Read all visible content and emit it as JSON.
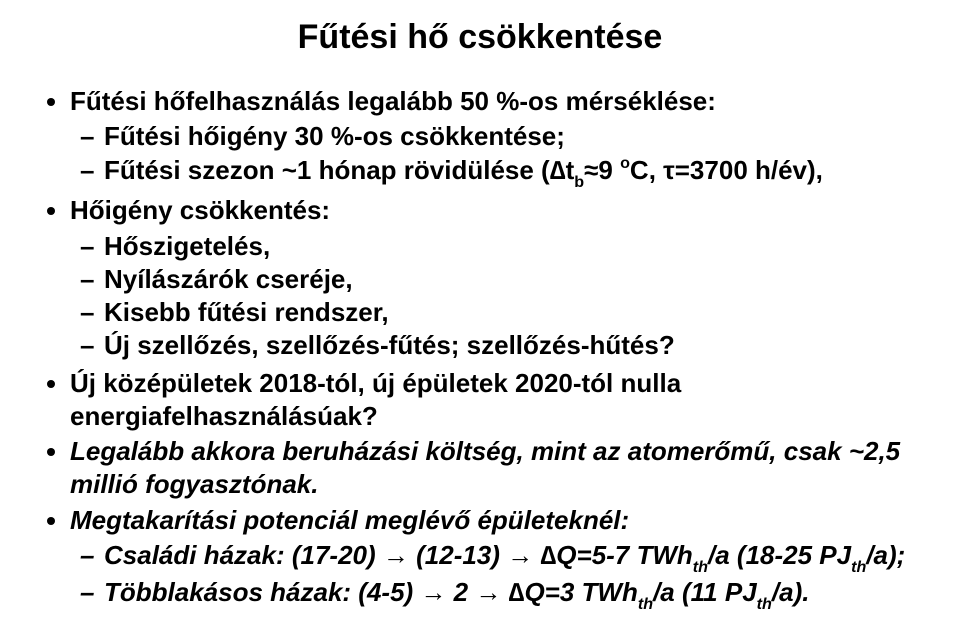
{
  "title": "Fűtési hő csökkentése",
  "b1": {
    "text": "Fűtési hőfelhasználás legalább 50 %-os mérséklése:",
    "s1": "Fűtési hőigény 30 %-os csökkentése;",
    "s2_pre": "Fűtési szezon ~1 hónap rövidülése (∆t",
    "s2_sub": "b",
    "s2_mid": "≈9 ",
    "s2_sup": "o",
    "s2_post": "C, τ=3700 h/év),"
  },
  "b2": {
    "text": "Hőigény csökkentés:",
    "s1": "Hőszigetelés,",
    "s2": "Nyílászárók cseréje,",
    "s3": "Kisebb fűtési rendszer,",
    "s4": "Új szellőzés, szellőzés-fűtés; szellőzés-hűtés?"
  },
  "b3": "Új középületek 2018-tól, új épületek 2020-tól nulla energiafelhasználásúak?",
  "b4": "Legalább akkora beruházási költség, mint az atomerőmű, csak ~2,5 millió fogyasztónak.",
  "b5": {
    "text": "Megtakarítási potenciál meglévő épületeknél:",
    "s1_pre": "Családi házak: (17-20) → (12-13) → ∆Q=5-7 TWh",
    "s1_sub1": "th",
    "s1_mid": "/a (18-25 PJ",
    "s1_sub2": "th",
    "s1_post": "/a);",
    "s2_pre": "Többlakásos házak: (4-5) → 2 → ∆Q=3 TWh",
    "s2_sub1": "th",
    "s2_mid": "/a (11 PJ",
    "s2_sub2": "th",
    "s2_post": "/a)."
  }
}
